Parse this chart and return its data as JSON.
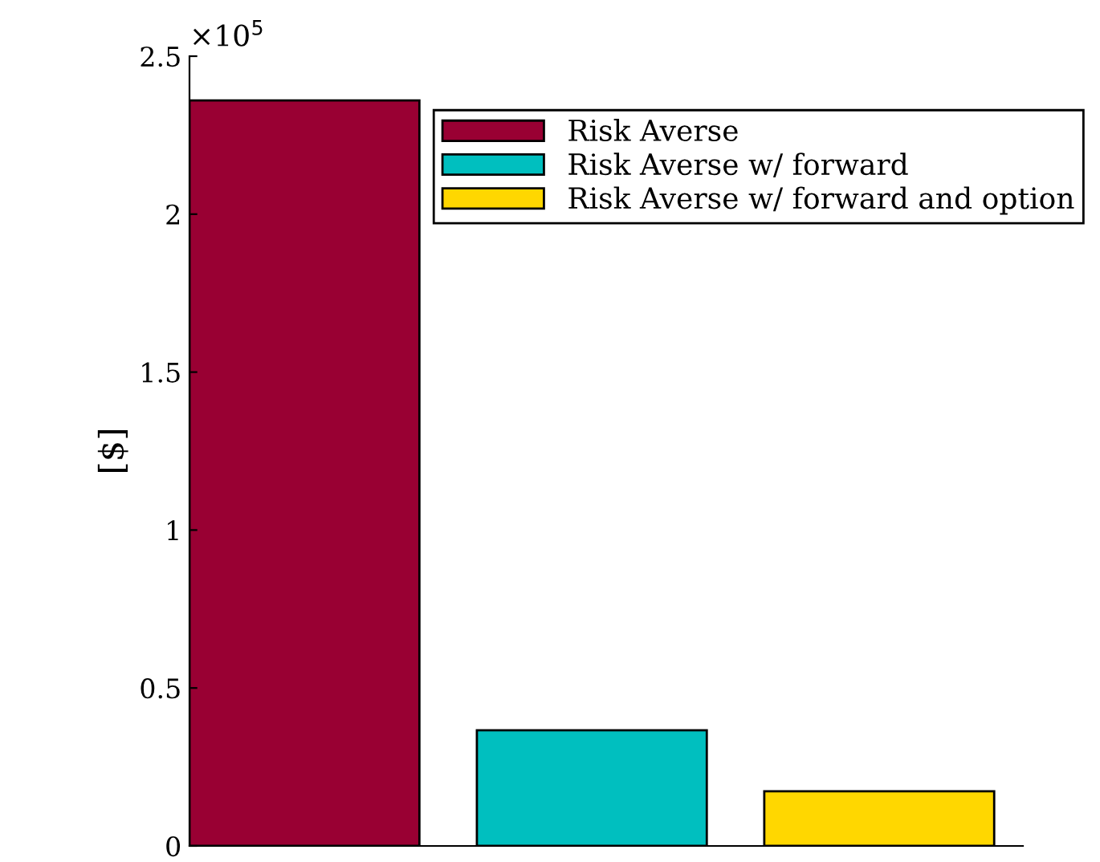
{
  "chart_data": {
    "type": "bar",
    "ylabel": "[$]",
    "categories": [
      null,
      null,
      null
    ],
    "series": [
      {
        "name": "Risk Averse",
        "color": "#990033",
        "values": [
          2.36,
          null,
          null
        ]
      },
      {
        "name": "Risk Averse w/ forward",
        "color": "#00bfbf",
        "values": [
          null,
          0.366,
          null
        ]
      },
      {
        "name": "Risk Averse w/ forward and option",
        "color": "#ffd700",
        "values": [
          null,
          null,
          0.173
        ]
      }
    ],
    "ylim": [
      0,
      2.5
    ],
    "yticks": [
      0,
      0.5,
      1,
      1.5,
      2,
      2.5
    ],
    "annotations": [
      "×10$^{5}$"
    ],
    "legend": "top right",
    "grid": false,
    "tick_labels": "y"
  }
}
